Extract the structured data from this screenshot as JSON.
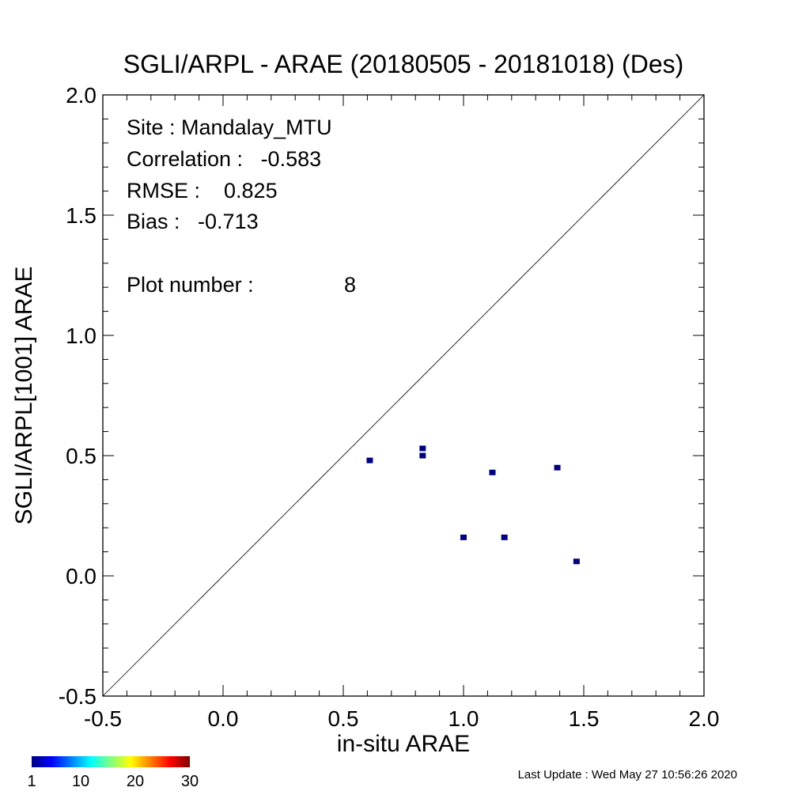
{
  "chart_data": {
    "type": "scatter",
    "title": "SGLI/ARPL - ARAE (20180505 - 20181018) (Des)",
    "xlabel": "in-situ ARAE",
    "ylabel": "SGLI/ARPL[1001]    ARAE",
    "xlim": [
      -0.5,
      2.0
    ],
    "ylim": [
      -0.5,
      2.0
    ],
    "x_ticks": [
      "-0.5",
      "0.0",
      "0.5",
      "1.0",
      "1.5",
      "2.0"
    ],
    "y_ticks": [
      "-0.5",
      "0.0",
      "0.5",
      "1.0",
      "1.5",
      "2.0"
    ],
    "one_to_one_line": true,
    "points": [
      {
        "x": 0.61,
        "y": 0.48,
        "count": 1
      },
      {
        "x": 0.83,
        "y": 0.53,
        "count": 1
      },
      {
        "x": 0.83,
        "y": 0.5,
        "count": 1
      },
      {
        "x": 1.12,
        "y": 0.43,
        "count": 1
      },
      {
        "x": 1.39,
        "y": 0.45,
        "count": 1
      },
      {
        "x": 1.0,
        "y": 0.16,
        "count": 1
      },
      {
        "x": 1.17,
        "y": 0.16,
        "count": 1
      },
      {
        "x": 1.47,
        "y": 0.06,
        "count": 1
      }
    ],
    "stats": {
      "site": "Site : Mandalay_MTU",
      "correlation": "Correlation :   -0.583",
      "rmse": "RMSE :    0.825",
      "bias": "Bias :   -0.713",
      "plot_number_label": "Plot number :",
      "plot_number_value": "8"
    },
    "colorbar": {
      "colors": [
        "#00007f",
        "#0000ff",
        "#007fff",
        "#00ffff",
        "#7fff7f",
        "#ffff00",
        "#ff7f00",
        "#ff0000",
        "#7f0000"
      ],
      "tick_labels": [
        "1",
        "10",
        "20",
        "30"
      ],
      "range": [
        1,
        30
      ]
    },
    "point_color": "#00007f"
  },
  "footer": {
    "last_update": "Last Update : Wed May 27 10:56:26 2020"
  }
}
